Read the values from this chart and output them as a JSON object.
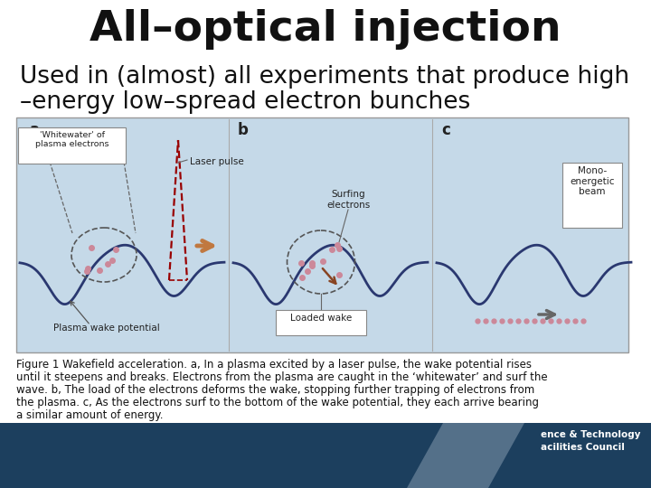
{
  "title": "All–optical injection",
  "subtitle_line1": "Used in (almost) all experiments that produce high",
  "subtitle_line2": "–energy low–spread electron bunches",
  "caption_lines": [
    "Figure 1 Wakefield acceleration. a, In a plasma excited by a laser pulse, the wake potential rises",
    "until it steepens and breaks. Electrons from the plasma are caught in the ‘whitewater’ and surf the",
    "wave. b, The load of the electrons deforms the wake, stopping further trapping of electrons from",
    "the plasma. c, As the electrons surf to the bottom of the wake potential, they each arrive bearing",
    "a similar amount of energy."
  ],
  "footer_color": "#1c3f5e",
  "bg_color": "#ffffff",
  "title_fontsize": 34,
  "subtitle_fontsize": 19,
  "caption_fontsize": 8.5,
  "footer_text1": "ence & Technology",
  "footer_text2": "acilities Council",
  "diagram_bg_color": "#c5d9e8",
  "diagram_border_color": "#999999",
  "wave_color": "#2a3870",
  "dot_color": "#cc8899"
}
